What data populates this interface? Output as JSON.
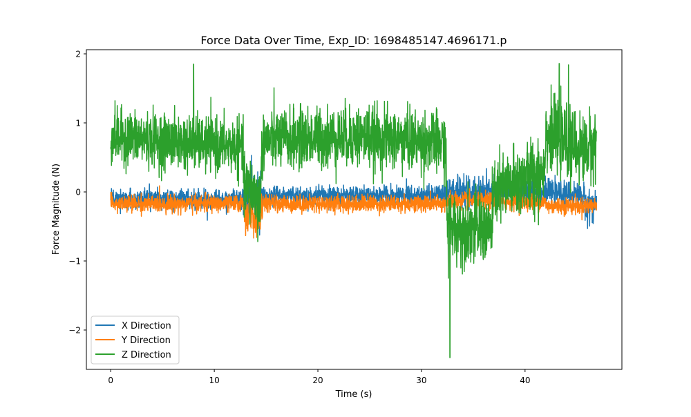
{
  "chart_data": {
    "type": "line",
    "title": "Force Data Over Time, Exp_ID: 1698485147.4696171.p",
    "xlabel": "Time (s)",
    "ylabel": "Force Magnitude (N)",
    "xlim": [
      -2.35,
      49.35
    ],
    "ylim": [
      -2.57,
      2.06
    ],
    "xticks": [
      0,
      10,
      20,
      30,
      40
    ],
    "xtick_labels": [
      "0",
      "10",
      "20",
      "30",
      "40"
    ],
    "yticks": [
      -2,
      -1,
      0,
      1,
      2
    ],
    "ytick_labels": [
      "−2",
      "−1",
      "0",
      "1",
      "2"
    ],
    "grid": false,
    "legend_position": "lower-left",
    "noise_seed": 7,
    "series": [
      {
        "name": "X Direction",
        "color": "#1f77b4",
        "profile": [
          {
            "t": 0.0,
            "mean": -0.1,
            "noise": 0.12
          },
          {
            "t": 12.7,
            "mean": -0.1,
            "noise": 0.12
          },
          {
            "t": 13.0,
            "mean": -0.1,
            "noise": 0.35
          },
          {
            "t": 14.5,
            "mean": -0.2,
            "noise": 0.35
          },
          {
            "t": 14.8,
            "mean": -0.05,
            "noise": 0.12
          },
          {
            "t": 32.3,
            "mean": -0.05,
            "noise": 0.12
          },
          {
            "t": 32.5,
            "mean": 0.0,
            "noise": 0.22
          },
          {
            "t": 37.0,
            "mean": 0.0,
            "noise": 0.18
          },
          {
            "t": 42.0,
            "mean": 0.0,
            "noise": 0.14
          },
          {
            "t": 45.5,
            "mean": -0.05,
            "noise": 0.16
          },
          {
            "t": 46.0,
            "mean": -0.2,
            "noise": 0.25
          },
          {
            "t": 46.9,
            "mean": -0.15,
            "noise": 0.2
          }
        ]
      },
      {
        "name": "Y Direction",
        "color": "#ff7f0e",
        "profile": [
          {
            "t": 0.0,
            "mean": -0.17,
            "noise": 0.11
          },
          {
            "t": 12.8,
            "mean": -0.17,
            "noise": 0.11
          },
          {
            "t": 13.0,
            "mean": -0.3,
            "noise": 0.25
          },
          {
            "t": 14.4,
            "mean": -0.4,
            "noise": 0.25
          },
          {
            "t": 14.7,
            "mean": -0.17,
            "noise": 0.11
          },
          {
            "t": 32.3,
            "mean": -0.17,
            "noise": 0.11
          },
          {
            "t": 32.6,
            "mean": -0.12,
            "noise": 0.11
          },
          {
            "t": 41.9,
            "mean": -0.15,
            "noise": 0.11
          },
          {
            "t": 42.1,
            "mean": -0.2,
            "noise": 0.11
          },
          {
            "t": 46.9,
            "mean": -0.2,
            "noise": 0.11
          }
        ]
      },
      {
        "name": "Z Direction",
        "color": "#2ca02c",
        "profile": [
          {
            "t": 0.0,
            "mean": 0.8,
            "noise": 0.35
          },
          {
            "t": 12.7,
            "mean": 0.65,
            "noise": 0.35
          },
          {
            "t": 12.9,
            "mean": 0.1,
            "noise": 0.45
          },
          {
            "t": 14.4,
            "mean": -0.1,
            "noise": 0.45
          },
          {
            "t": 14.7,
            "mean": 0.75,
            "noise": 0.38
          },
          {
            "t": 24.0,
            "mean": 0.8,
            "noise": 0.4
          },
          {
            "t": 32.3,
            "mean": 0.7,
            "noise": 0.4
          },
          {
            "t": 32.5,
            "mean": -0.5,
            "noise": 0.45
          },
          {
            "t": 36.8,
            "mean": -0.55,
            "noise": 0.45
          },
          {
            "t": 37.0,
            "mean": 0.0,
            "noise": 0.45
          },
          {
            "t": 41.8,
            "mean": 0.3,
            "noise": 0.5
          },
          {
            "t": 42.0,
            "mean": 0.85,
            "noise": 0.45
          },
          {
            "t": 45.5,
            "mean": 0.6,
            "noise": 0.45
          },
          {
            "t": 46.9,
            "mean": 0.7,
            "noise": 0.45
          }
        ],
        "spikes": [
          {
            "t": 8.0,
            "y": 1.85
          },
          {
            "t": 32.6,
            "y": -1.25
          },
          {
            "t": 32.75,
            "y": -2.4
          },
          {
            "t": 43.3,
            "y": 1.86
          },
          {
            "t": 44.2,
            "y": 1.84
          },
          {
            "t": 14.2,
            "y": -0.72
          }
        ]
      }
    ]
  }
}
